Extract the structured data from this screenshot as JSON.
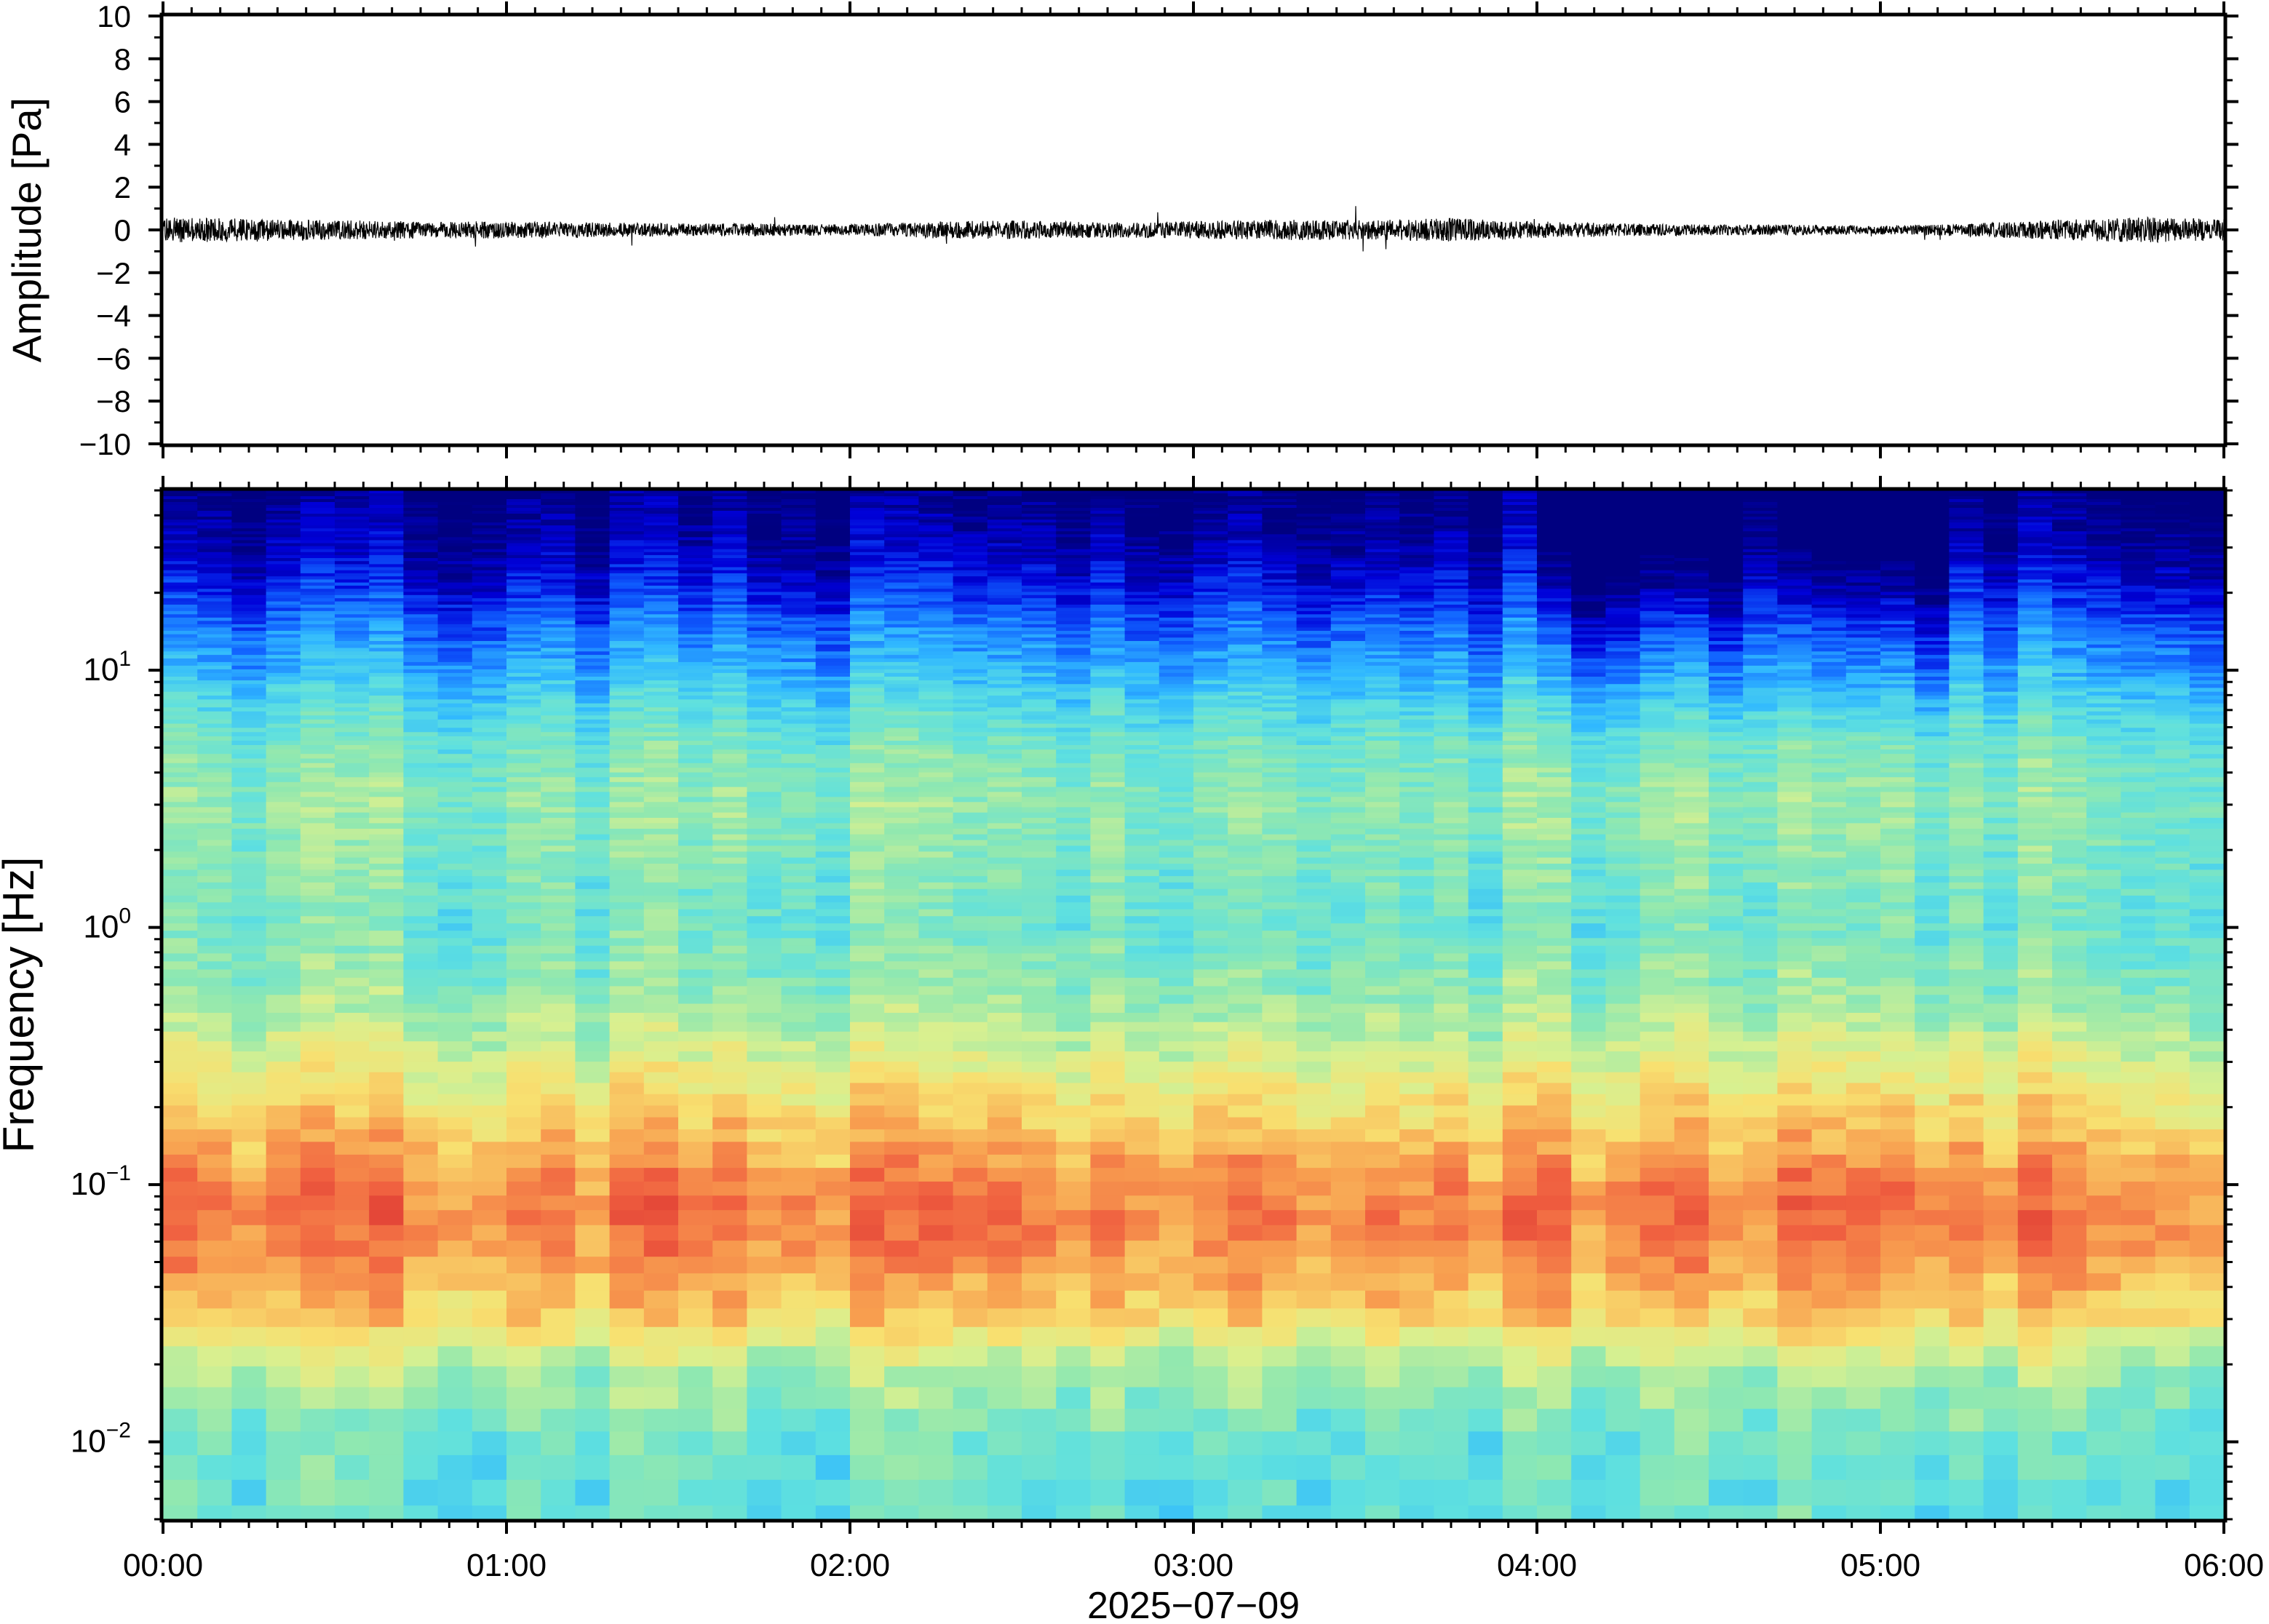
{
  "chart_data": [
    {
      "type": "line",
      "panel": "waveform",
      "ylabel": "Amplitude [Pa]",
      "ylim": [
        -10,
        10
      ],
      "yticks": [
        10,
        8,
        6,
        4,
        2,
        0,
        -2,
        -4,
        -6,
        -8,
        -10
      ],
      "ytick_labels": [
        "10",
        "8",
        "6",
        "4",
        "2",
        "0",
        "−2",
        "−4",
        "−6",
        "−8",
        "−10"
      ],
      "xlim_hours": [
        0,
        6
      ],
      "series": [
        {
          "color": "#000000",
          "envelope_hours": [
            0,
            0.25,
            0.5,
            0.75,
            1.0,
            1.25,
            1.5,
            1.75,
            2.0,
            2.25,
            2.5,
            2.75,
            3.0,
            3.25,
            3.5,
            3.75,
            4.0,
            4.25,
            4.5,
            4.75,
            5.0,
            5.25,
            5.5,
            5.75,
            6.0
          ],
          "envelope_pa": [
            0.6,
            0.55,
            0.45,
            0.4,
            0.4,
            0.35,
            0.3,
            0.3,
            0.25,
            0.4,
            0.45,
            0.35,
            0.4,
            0.5,
            0.45,
            0.55,
            0.4,
            0.3,
            0.25,
            0.25,
            0.2,
            0.3,
            0.45,
            0.6,
            0.5
          ]
        }
      ],
      "grid": false
    },
    {
      "type": "heatmap",
      "panel": "spectrogram",
      "ylabel": "Frequency [Hz]",
      "yscale": "log",
      "ylim_hz": [
        0.005,
        50
      ],
      "yticks": [
        {
          "base": "10",
          "exp": "−2"
        },
        {
          "base": "10",
          "exp": "−1"
        },
        {
          "base": "10",
          "exp": "0"
        },
        {
          "base": "10",
          "exp": "1"
        }
      ],
      "xlim_hours": [
        0,
        6
      ],
      "colormap": "jet",
      "colormap_stops": [
        "#000080",
        "#0000d8",
        "#1060ff",
        "#30b8ff",
        "#5ee0e0",
        "#90e8b0",
        "#d8f090",
        "#f8e070",
        "#f8a050",
        "#f06040",
        "#d83030"
      ],
      "time_columns": 60,
      "profile_freq_hz": [
        0.005,
        0.01,
        0.02,
        0.03,
        0.05,
        0.08,
        0.1,
        0.2,
        0.3,
        0.5,
        1,
        2,
        3,
        5,
        8,
        10,
        15,
        20,
        30,
        50
      ],
      "profile_level": [
        0.42,
        0.44,
        0.55,
        0.72,
        0.82,
        0.86,
        0.84,
        0.7,
        0.62,
        0.52,
        0.45,
        0.48,
        0.5,
        0.46,
        0.36,
        0.3,
        0.22,
        0.14,
        0.06,
        0.0
      ],
      "high_freq_darkening_hours": [
        [
          4.05,
          4.6
        ],
        [
          4.75,
          5.2
        ]
      ],
      "grid": false
    }
  ],
  "xaxis": {
    "tick_labels": [
      "00:00",
      "01:00",
      "02:00",
      "03:00",
      "04:00",
      "05:00",
      "06:00"
    ],
    "date_label": "2025−07−09"
  }
}
